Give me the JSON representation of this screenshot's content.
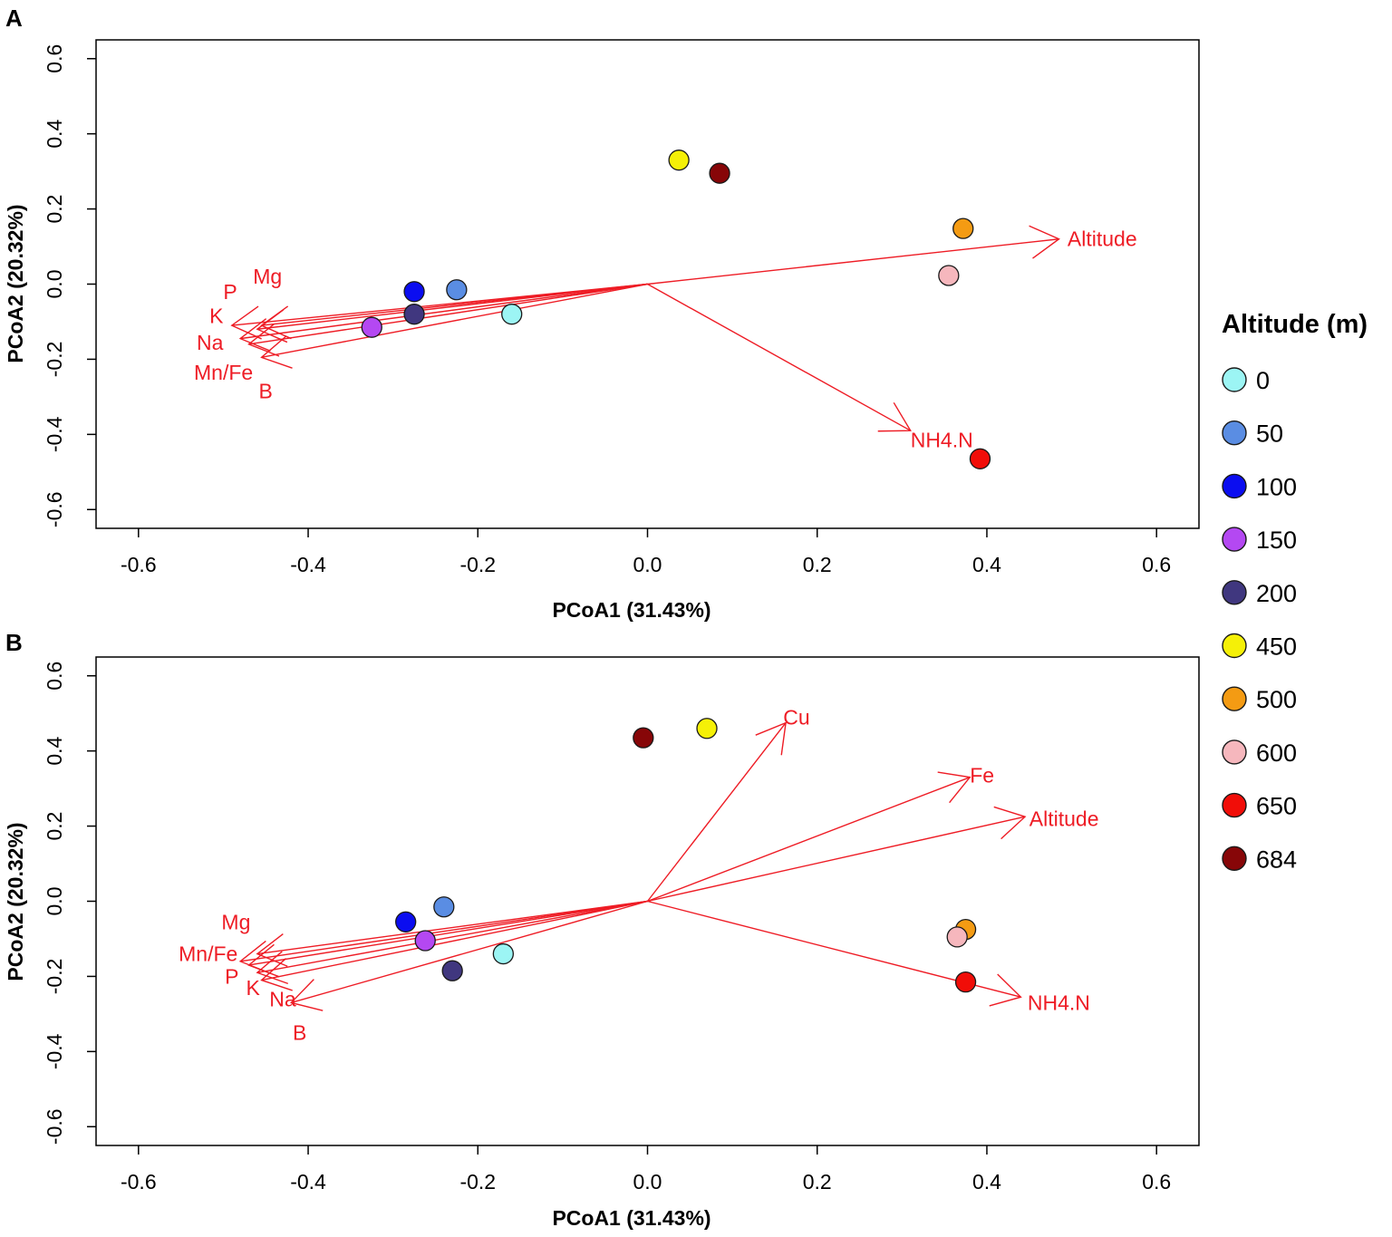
{
  "vector_color": "#ee1c25",
  "chart_data": [
    {
      "type": "scatter",
      "panel_label": "A",
      "xlabel": "PCoA1 (31.43%)",
      "ylabel": "PCoA2 (20.32%)",
      "xlim": [
        -0.65,
        0.65
      ],
      "ylim": [
        -0.65,
        0.65
      ],
      "x_ticks": [
        -0.6,
        -0.4,
        -0.2,
        0.0,
        0.2,
        0.4,
        0.6
      ],
      "y_ticks": [
        -0.6,
        -0.4,
        -0.2,
        0.0,
        0.2,
        0.4,
        0.6
      ],
      "points": [
        {
          "altitude": "0",
          "x": -0.16,
          "y": -0.08
        },
        {
          "altitude": "50",
          "x": -0.225,
          "y": -0.015
        },
        {
          "altitude": "100",
          "x": -0.275,
          "y": -0.02
        },
        {
          "altitude": "150",
          "x": -0.325,
          "y": -0.115
        },
        {
          "altitude": "200",
          "x": -0.275,
          "y": -0.08
        },
        {
          "altitude": "450",
          "x": 0.037,
          "y": 0.33
        },
        {
          "altitude": "684",
          "x": 0.085,
          "y": 0.295
        },
        {
          "altitude": "500",
          "x": 0.372,
          "y": 0.148
        },
        {
          "altitude": "600",
          "x": 0.355,
          "y": 0.023
        },
        {
          "altitude": "650",
          "x": 0.392,
          "y": -0.465
        }
      ],
      "vectors": [
        {
          "name": "Altitude",
          "x": 0.485,
          "y": 0.12,
          "label_x": 0.495,
          "label_y": 0.12,
          "anchor": "start"
        },
        {
          "name": "NH4.N",
          "x": 0.31,
          "y": -0.39,
          "label_x": 0.31,
          "label_y": -0.415,
          "anchor": "start"
        },
        {
          "name": "Mg",
          "x": -0.455,
          "y": -0.11,
          "label_x": -0.465,
          "label_y": 0.02,
          "anchor": "start"
        },
        {
          "name": "P",
          "x": -0.46,
          "y": -0.12,
          "label_x": -0.5,
          "label_y": -0.02,
          "anchor": "start"
        },
        {
          "name": "K",
          "x": -0.49,
          "y": -0.11,
          "label_x": -0.5,
          "label_y": -0.085,
          "anchor": "end"
        },
        {
          "name": "Na",
          "x": -0.48,
          "y": -0.145,
          "label_x": -0.5,
          "label_y": -0.155,
          "anchor": "end"
        },
        {
          "name": "Mn/Fe",
          "x": -0.47,
          "y": -0.16,
          "label_x": -0.465,
          "label_y": -0.235,
          "anchor": "end"
        },
        {
          "name": "B",
          "x": -0.455,
          "y": -0.195,
          "label_x": -0.45,
          "label_y": -0.285,
          "anchor": "middle"
        }
      ]
    },
    {
      "type": "scatter",
      "panel_label": "B",
      "xlabel": "PCoA1 (31.43%)",
      "ylabel": "PCoA2 (20.32%)",
      "xlim": [
        -0.65,
        0.65
      ],
      "ylim": [
        -0.65,
        0.65
      ],
      "x_ticks": [
        -0.6,
        -0.4,
        -0.2,
        0.0,
        0.2,
        0.4,
        0.6
      ],
      "y_ticks": [
        -0.6,
        -0.4,
        -0.2,
        0.0,
        0.2,
        0.4,
        0.6
      ],
      "points": [
        {
          "altitude": "0",
          "x": -0.17,
          "y": -0.14
        },
        {
          "altitude": "50",
          "x": -0.24,
          "y": -0.015
        },
        {
          "altitude": "100",
          "x": -0.285,
          "y": -0.055
        },
        {
          "altitude": "150",
          "x": -0.262,
          "y": -0.105
        },
        {
          "altitude": "200",
          "x": -0.23,
          "y": -0.185
        },
        {
          "altitude": "450",
          "x": 0.07,
          "y": 0.46
        },
        {
          "altitude": "684",
          "x": -0.005,
          "y": 0.435
        },
        {
          "altitude": "500",
          "x": 0.375,
          "y": -0.075
        },
        {
          "altitude": "600",
          "x": 0.365,
          "y": -0.095
        },
        {
          "altitude": "650",
          "x": 0.375,
          "y": -0.215
        }
      ],
      "vectors": [
        {
          "name": "Cu",
          "x": 0.163,
          "y": 0.475,
          "label_x": 0.16,
          "label_y": 0.49,
          "anchor": "start"
        },
        {
          "name": "Fe",
          "x": 0.38,
          "y": 0.33,
          "label_x": 0.38,
          "label_y": 0.335,
          "anchor": "start"
        },
        {
          "name": "Altitude",
          "x": 0.445,
          "y": 0.225,
          "label_x": 0.45,
          "label_y": 0.22,
          "anchor": "start"
        },
        {
          "name": "NH4.N",
          "x": 0.44,
          "y": -0.255,
          "label_x": 0.448,
          "label_y": -0.27,
          "anchor": "start"
        },
        {
          "name": "Mg",
          "x": -0.46,
          "y": -0.14,
          "label_x": -0.468,
          "label_y": -0.055,
          "anchor": "end"
        },
        {
          "name": "Mn/Fe",
          "x": -0.48,
          "y": -0.16,
          "label_x": -0.483,
          "label_y": -0.14,
          "anchor": "end"
        },
        {
          "name": "P",
          "x": -0.47,
          "y": -0.17,
          "label_x": -0.49,
          "label_y": -0.2,
          "anchor": "middle"
        },
        {
          "name": "K",
          "x": -0.46,
          "y": -0.19,
          "label_x": -0.465,
          "label_y": -0.23,
          "anchor": "middle"
        },
        {
          "name": "Na",
          "x": -0.455,
          "y": -0.21,
          "label_x": -0.43,
          "label_y": -0.26,
          "anchor": "middle"
        },
        {
          "name": "B",
          "x": -0.42,
          "y": -0.27,
          "label_x": -0.41,
          "label_y": -0.35,
          "anchor": "middle"
        }
      ]
    }
  ],
  "legend": {
    "title": "Altitude (m)",
    "items": [
      {
        "label": "0",
        "color": "#9cf5f4"
      },
      {
        "label": "50",
        "color": "#5a8de3"
      },
      {
        "label": "100",
        "color": "#0b0df0"
      },
      {
        "label": "150",
        "color": "#b448f2"
      },
      {
        "label": "200",
        "color": "#40377f"
      },
      {
        "label": "450",
        "color": "#f5f007"
      },
      {
        "label": "500",
        "color": "#f49b13"
      },
      {
        "label": "600",
        "color": "#f6b7bd"
      },
      {
        "label": "650",
        "color": "#f10d08"
      },
      {
        "label": "684",
        "color": "#870608"
      }
    ]
  }
}
